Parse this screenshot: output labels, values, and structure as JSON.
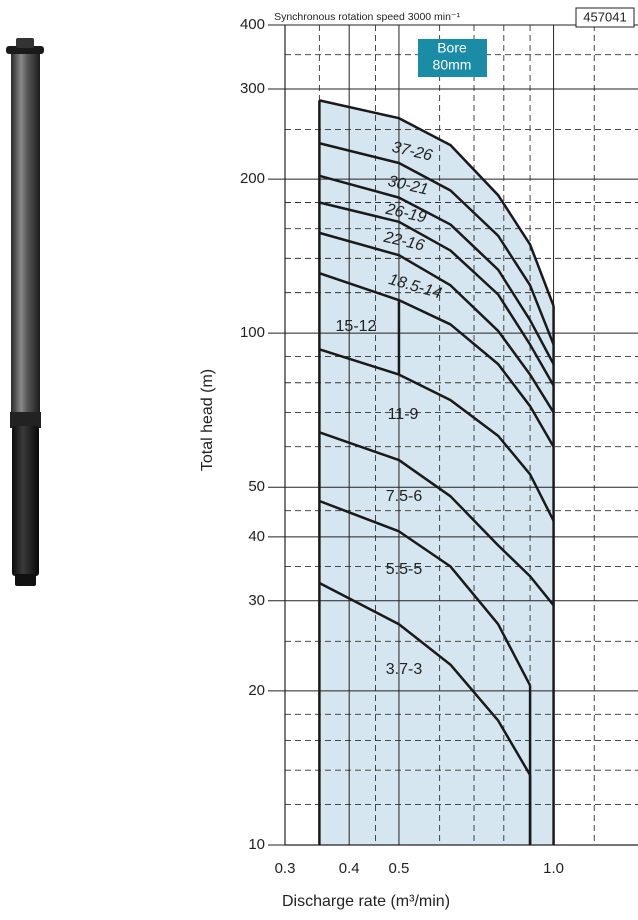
{
  "chart_data": {
    "type": "line",
    "log_x": true,
    "log_y": true,
    "header_note": "Synchronous rotation speed 3000 min⁻¹",
    "model_code": "457041",
    "bore_label": [
      "Bore",
      "80mm"
    ],
    "bore_color": "#1b8ca6",
    "xlabel": "Discharge rate (m³/min)",
    "ylabel": "Total head (m)",
    "xlim": [
      0.3,
      1.46
    ],
    "ylim": [
      10,
      400
    ],
    "xticks": [
      0.3,
      0.4,
      0.5,
      {
        "value": 1,
        "label": "1.0"
      }
    ],
    "yticks": [
      10,
      20,
      30,
      40,
      50,
      100,
      200,
      300,
      400
    ],
    "x_minor_grid": [
      0.35,
      0.45,
      0.6,
      0.7,
      0.8,
      0.9,
      1.2
    ],
    "y_minor_grid": [
      12,
      14,
      16,
      18,
      25,
      35,
      45,
      60,
      70,
      80,
      90,
      120,
      140,
      160,
      180,
      250,
      350
    ],
    "region": {
      "color": "#d6e6f0",
      "x": [
        0.35,
        0.5,
        0.63,
        0.78,
        0.9,
        1.0
      ],
      "values": [
        285,
        263,
        233,
        186,
        149,
        113
      ]
    },
    "color": "#1a1a1a",
    "series": [
      {
        "name": "37-26",
        "x": [
          0.35,
          0.5,
          0.63,
          0.78,
          0.9,
          1.0
        ],
        "values": [
          235,
          215,
          190,
          155,
          124,
          95
        ]
      },
      {
        "name": "30-21",
        "x": [
          0.35,
          0.5,
          0.63,
          0.78,
          0.9,
          1.0
        ],
        "values": [
          203,
          184,
          163,
          133,
          106,
          87
        ]
      },
      {
        "name": "26-19",
        "x": [
          0.35,
          0.5,
          0.63,
          0.78,
          0.9,
          1.0
        ],
        "values": [
          180,
          165,
          145,
          119,
          95,
          79
        ]
      },
      {
        "name": "22-16",
        "x": [
          0.35,
          0.5,
          0.63,
          0.78,
          0.9,
          1.0
        ],
        "values": [
          157,
          142,
          124,
          101,
          83,
          70
        ]
      },
      {
        "name": "18.5-14",
        "x": [
          0.5,
          0.63,
          0.78,
          0.9,
          1.0
        ],
        "values": [
          116,
          104,
          87,
          72,
          60
        ]
      },
      {
        "name": "15-12",
        "x": [
          0.35,
          0.5,
          0.5
        ],
        "values": [
          131,
          116,
          83
        ]
      },
      {
        "name": "11-9",
        "x": [
          0.35,
          0.5,
          0.63,
          0.78,
          0.9,
          1.0
        ],
        "values": [
          93,
          83,
          74,
          63,
          53,
          43
        ]
      },
      {
        "name": "7.5-6",
        "x": [
          0.35,
          0.5,
          0.63,
          0.78,
          0.9,
          1.0
        ],
        "values": [
          64,
          56.5,
          48,
          38.5,
          33.5,
          29.4
        ]
      },
      {
        "name": "5.5-5",
        "x": [
          0.35,
          0.5,
          0.63,
          0.78,
          0.9
        ],
        "values": [
          47,
          41,
          35,
          27,
          20.5
        ]
      },
      {
        "name": "3.7-3",
        "x": [
          0.35,
          0.5,
          0.63,
          0.78,
          0.9
        ],
        "values": [
          32.5,
          27,
          22.5,
          17.5,
          13.7
        ]
      }
    ]
  }
}
